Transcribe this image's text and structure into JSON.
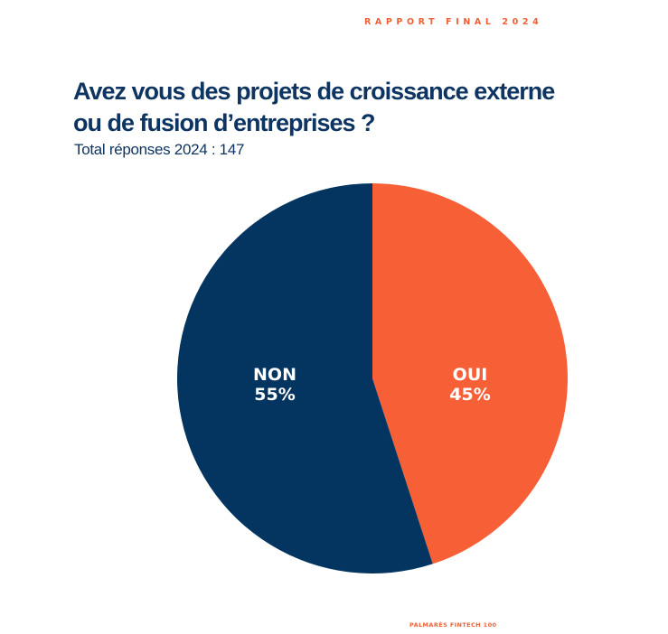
{
  "header": {
    "report_label": "RAPPORT FINAL 2024"
  },
  "title": {
    "line1": "Avez vous des projets de croissance externe",
    "line2": "ou de fusion d’entreprises ?"
  },
  "subtitle": "Total réponses 2024 : 147",
  "footer": {
    "label": "PALMARÈS FINTECH 100"
  },
  "colors": {
    "navy": "#0e3561",
    "orange": "#f26035",
    "oui": "#f76037",
    "non": "#043560"
  },
  "chart_data": {
    "type": "pie",
    "title": "Avez vous des projets de croissance externe ou de fusion d’entreprises ?",
    "subtitle": "Total réponses 2024 : 147",
    "slices": [
      {
        "label": "OUI",
        "value": 45,
        "value_label": "45%",
        "color": "#f76037"
      },
      {
        "label": "NON",
        "value": 55,
        "value_label": "55%",
        "color": "#043560"
      }
    ]
  }
}
